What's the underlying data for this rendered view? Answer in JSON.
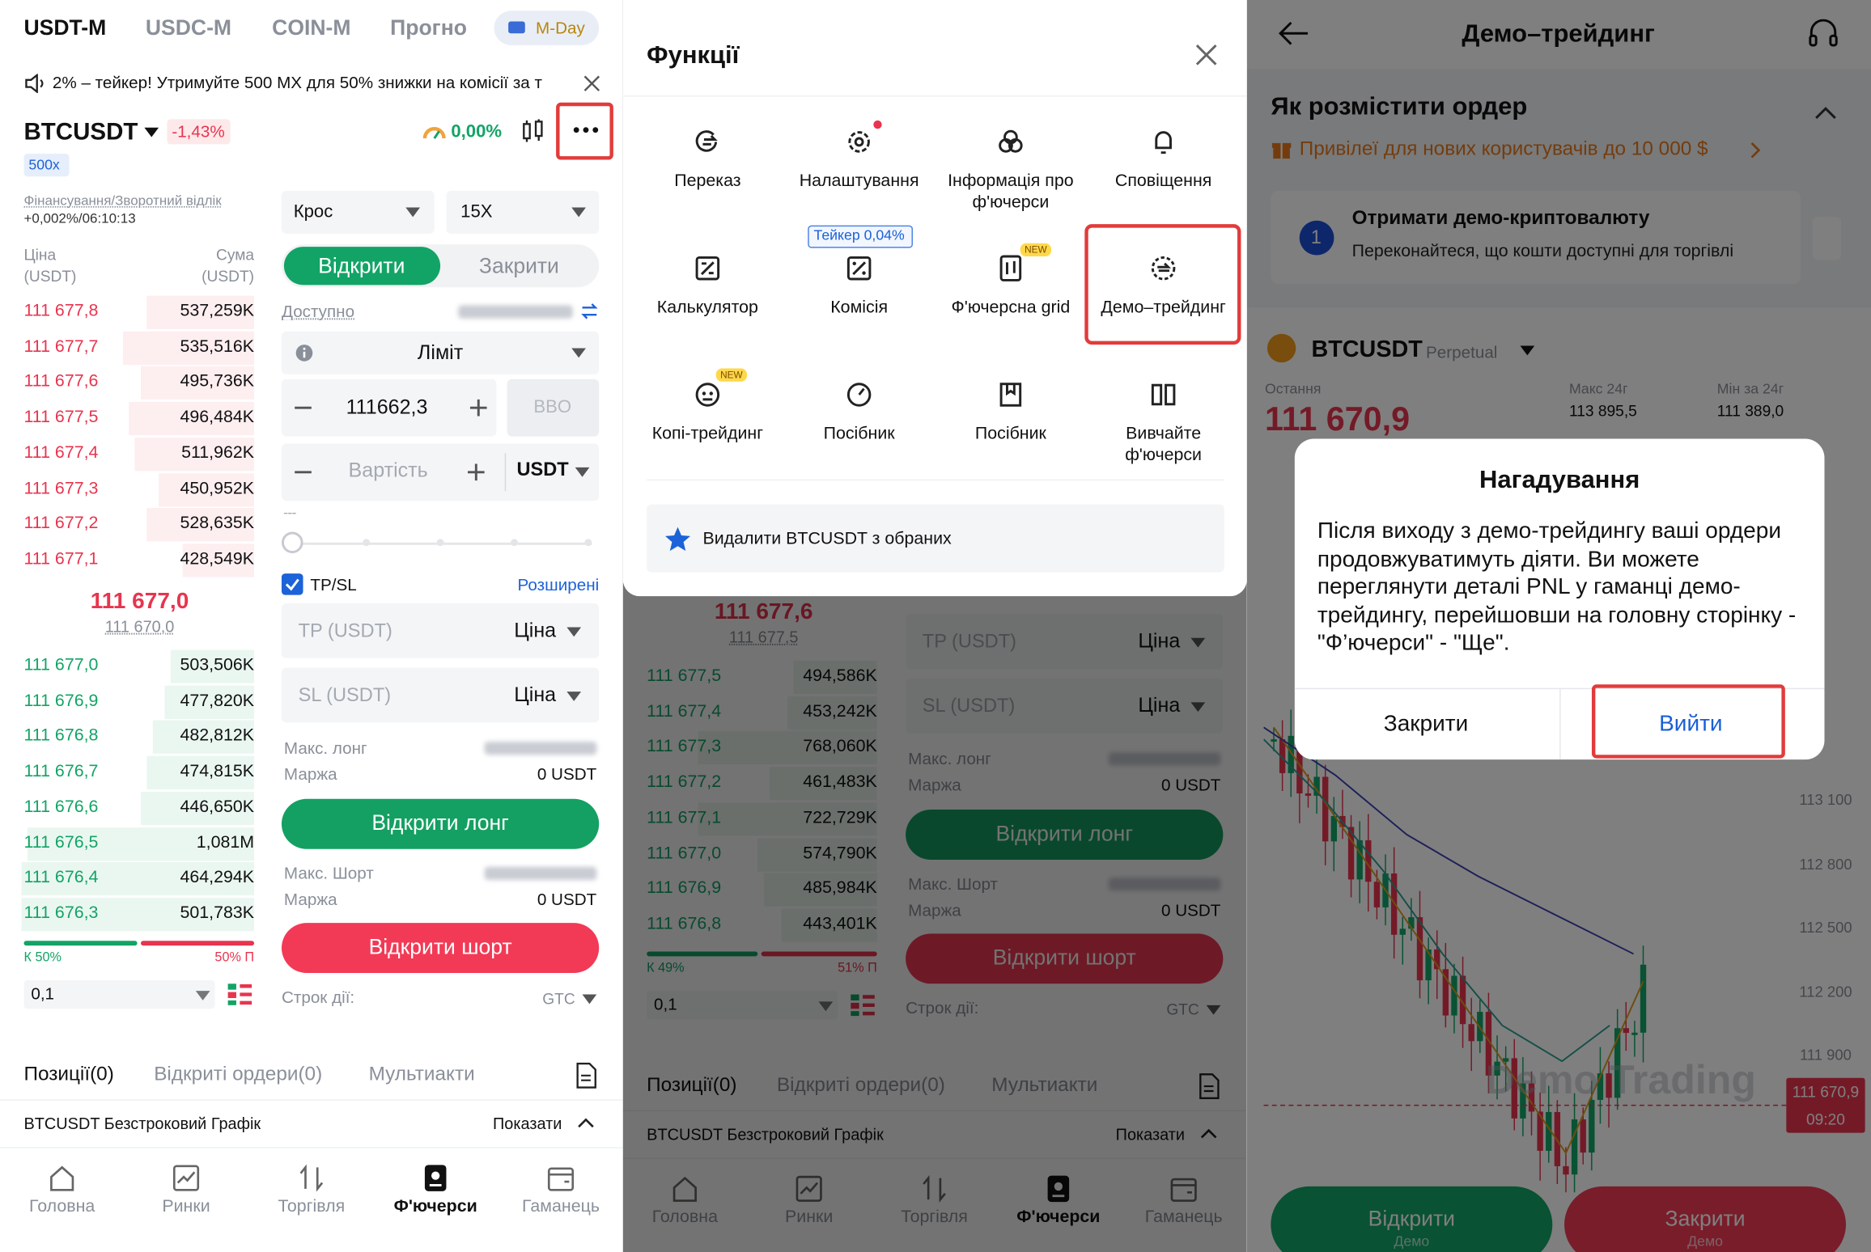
{
  "left": {
    "tabs": [
      "USDT-M",
      "USDC-M",
      "COIN-M",
      "Прогно"
    ],
    "m_day": "M-Day",
    "banner": "2% – тейкер! Утримуйте 500 MX для 50% знижки на комісії за т",
    "symbol": "BTCUSDT",
    "change": "-1,43%",
    "leverage_tag": "500x",
    "rate": "0,00%",
    "funding_label": "Фінансування/Зворотний відлік",
    "funding_value": "+0,002%/06:10:13",
    "price_header": "Ціна (USDT)",
    "amount_header": "Сума (USDT)",
    "asks": [
      [
        "111 677,8",
        "537,259K"
      ],
      [
        "111 677,7",
        "535,516K"
      ],
      [
        "111 677,6",
        "495,736K"
      ],
      [
        "111 677,5",
        "496,484K"
      ],
      [
        "111 677,4",
        "511,962K"
      ],
      [
        "111 677,3",
        "450,952K"
      ],
      [
        "111 677,2",
        "528,635K"
      ],
      [
        "111 677,1",
        "428,549K"
      ]
    ],
    "last_price": "111 677,0",
    "mark_price": "111 670,0",
    "bids": [
      [
        "111 677,0",
        "503,506K"
      ],
      [
        "111 676,9",
        "477,820K"
      ],
      [
        "111 676,8",
        "482,812K"
      ],
      [
        "111 676,7",
        "474,815K"
      ],
      [
        "111 676,6",
        "446,650K"
      ],
      [
        "111 676,5",
        "1,081M"
      ],
      [
        "111 676,4",
        "464,294K"
      ],
      [
        "111 676,3",
        "501,783K"
      ]
    ],
    "buy_ratio": "К 50%",
    "sell_ratio": "50% П",
    "precision": "0,1",
    "form": {
      "margin_mode": "Крос",
      "leverage": "15X",
      "open": "Відкрити",
      "close": "Закрити",
      "available": "Доступно",
      "order_type": "Ліміт",
      "price": "111662,3",
      "bbo": "BBO",
      "cost": "Вартість",
      "unit": "USDT",
      "tpsl": "TP/SL",
      "advanced": "Розширені",
      "tp": "TP (USDT)",
      "sl": "SL (USDT)",
      "trigger": "Ціна",
      "max_long": "Макс. лонг",
      "margin": "Маржа",
      "margin_value": "0 USDT",
      "open_long": "Відкрити лонг",
      "max_short": "Макс. Шорт",
      "open_short": "Відкрити шорт",
      "time_in_force": "Строк дії:",
      "tif_value": "GTC"
    },
    "bottom_tabs": [
      "Позиції(0)",
      "Відкриті ордери(0)",
      "Мультиакти"
    ],
    "chart_row": "BTCUSDT Безстроковий Графік",
    "show": "Показати",
    "nav": [
      "Головна",
      "Ринки",
      "Торгівля",
      "Ф'ючерси",
      "Гаманець"
    ]
  },
  "middle": {
    "title": "Функції",
    "items": [
      "Переказ",
      "Налаштування",
      "Інформація про ф'ючерси",
      "Сповіщення",
      "Калькулятор",
      "Комісія",
      "Ф'ючерсна grid",
      "Демо–трейдинг",
      "Копі-трейдинг",
      "Посібник",
      "Посібник",
      "Вивчайте ф'ючерси"
    ],
    "taker_fee": "Тейкер 0,04%",
    "new_badge": "NEW",
    "favorite": "Видалити BTCUSDT з обраних",
    "background": {
      "last_price": "111 677,6",
      "mark_price": "111 677,5",
      "bids": [
        [
          "111 677,5",
          "494,586K"
        ],
        [
          "111 677,4",
          "453,242K"
        ],
        [
          "111 677,3",
          "768,060K"
        ],
        [
          "111 677,2",
          "461,483K"
        ],
        [
          "111 677,1",
          "722,729K"
        ],
        [
          "111 677,0",
          "574,790K"
        ],
        [
          "111 676,9",
          "485,984K"
        ],
        [
          "111 676,8",
          "443,401K"
        ]
      ],
      "buy_ratio": "К 49%",
      "sell_ratio": "51% П"
    }
  },
  "right": {
    "title": "Демо–трейдинг",
    "guide_title": "Як розмістити ордер",
    "promo": "Привілеї для нових користувачів до 10 000 $",
    "step_number": "1",
    "step_title": "Отримати демо-криптовалюту",
    "step_text": "Переконайтеся, що кошти доступні для торгівлі",
    "symbol": "BTCUSDT",
    "contract": "Perpetual",
    "last_label": "Остання",
    "last_price": "111 670,9",
    "high_label": "Макс 24г",
    "high": "113 895,5",
    "low_label": "Мін за 24г",
    "low": "111 389,0",
    "price_axis": [
      "113 100",
      "112 800",
      "112 500",
      "112 200",
      "111 900"
    ],
    "price_tag": "111 670,9",
    "time_tag": "09:20",
    "watermark": "Demo Trading",
    "open": "Відкрити",
    "close": "Закрити",
    "demo": "Демо",
    "dialog": {
      "title": "Нагадування",
      "text": "Після виходу з демо-трейдингу ваші ордери продовжуватимуть діяти. Ви можете переглянути деталі PNL у гаманці демо-трейдингу, перейшовши на головну сторінку - \"Ф’ючерси\" - \"Ще\".",
      "cancel": "Закрити",
      "confirm": "Вийти"
    }
  }
}
